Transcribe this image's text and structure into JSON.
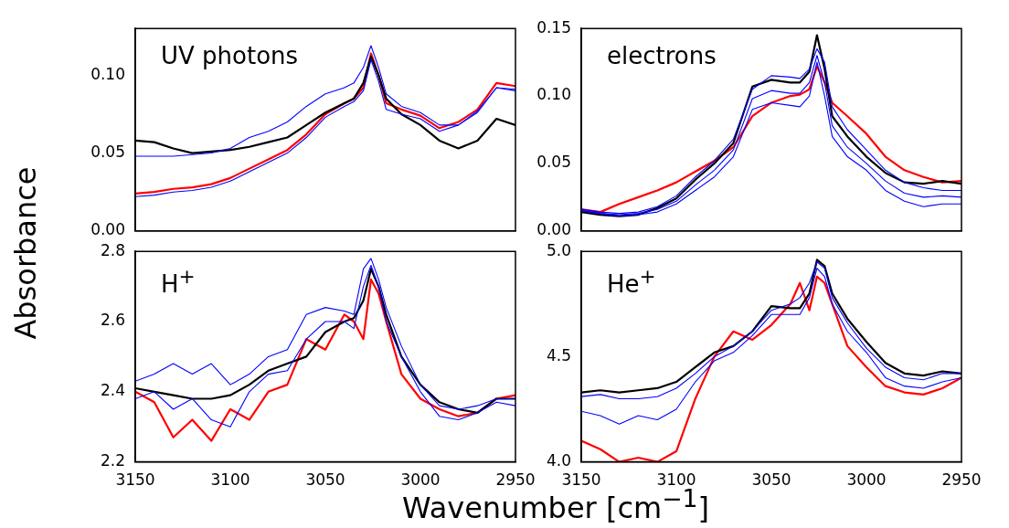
{
  "chart_data": [
    {
      "type": "line",
      "title": "UV photons",
      "ylabel": "Absorbance",
      "marker": "none",
      "tick_labels": "y",
      "xlim": [
        3150,
        2950
      ],
      "ylim": [
        0,
        0.13
      ],
      "yticks": [
        {
          "value": 0,
          "label": "0.00"
        },
        {
          "value": 0.05,
          "label": "0.05"
        },
        {
          "value": 0.1,
          "label": "0.10"
        }
      ],
      "x": [
        3150,
        3140,
        3130,
        3120,
        3110,
        3100,
        3090,
        3080,
        3070,
        3060,
        3050,
        3040,
        3035,
        3030,
        3026,
        3022,
        3018,
        3010,
        3000,
        2990,
        2980,
        2970,
        2960,
        2950
      ],
      "series": [
        {
          "color": "#0000ff",
          "values": [
            0.048,
            0.048,
            0.048,
            0.049,
            0.05,
            0.053,
            0.06,
            0.064,
            0.07,
            0.08,
            0.088,
            0.092,
            0.095,
            0.105,
            0.119,
            0.105,
            0.088,
            0.08,
            0.076,
            0.068,
            0.068,
            0.077,
            0.092,
            0.09
          ]
        },
        {
          "color": "#0000ff",
          "values": [
            0.022,
            0.023,
            0.025,
            0.026,
            0.028,
            0.032,
            0.038,
            0.044,
            0.05,
            0.06,
            0.073,
            0.08,
            0.083,
            0.09,
            0.11,
            0.096,
            0.078,
            0.075,
            0.072,
            0.064,
            0.068,
            0.076,
            0.092,
            0.091
          ]
        },
        {
          "color": "#000000",
          "values": [
            0.058,
            0.057,
            0.053,
            0.05,
            0.051,
            0.052,
            0.054,
            0.057,
            0.06,
            0.068,
            0.076,
            0.082,
            0.085,
            0.095,
            0.112,
            0.1,
            0.085,
            0.075,
            0.068,
            0.058,
            0.053,
            0.058,
            0.072,
            0.068
          ]
        },
        {
          "color": "#ff0000",
          "values": [
            0.024,
            0.025,
            0.027,
            0.028,
            0.03,
            0.034,
            0.04,
            0.046,
            0.052,
            0.062,
            0.075,
            0.082,
            0.085,
            0.092,
            0.114,
            0.1,
            0.082,
            0.078,
            0.074,
            0.066,
            0.07,
            0.078,
            0.095,
            0.093
          ]
        }
      ]
    },
    {
      "type": "line",
      "title": "electrons",
      "marker": "none",
      "tick_labels": "y",
      "xlim": [
        3150,
        2950
      ],
      "ylim": [
        0,
        0.15
      ],
      "yticks": [
        {
          "value": 0,
          "label": "0.00"
        },
        {
          "value": 0.05,
          "label": "0.05"
        },
        {
          "value": 0.1,
          "label": "0.10"
        },
        {
          "value": 0.15,
          "label": "0.15"
        }
      ],
      "x": [
        3150,
        3140,
        3130,
        3120,
        3110,
        3100,
        3090,
        3080,
        3070,
        3060,
        3050,
        3040,
        3035,
        3030,
        3026,
        3022,
        3018,
        3010,
        3000,
        2990,
        2980,
        2970,
        2960,
        2950
      ],
      "series": [
        {
          "color": "#0000ff",
          "values": [
            0.016,
            0.014,
            0.013,
            0.014,
            0.018,
            0.026,
            0.04,
            0.052,
            0.068,
            0.105,
            0.115,
            0.114,
            0.113,
            0.12,
            0.135,
            0.125,
            0.092,
            0.075,
            0.06,
            0.045,
            0.036,
            0.032,
            0.03,
            0.03
          ]
        },
        {
          "color": "#0000ff",
          "values": [
            0.015,
            0.013,
            0.012,
            0.013,
            0.016,
            0.022,
            0.034,
            0.045,
            0.06,
            0.098,
            0.104,
            0.102,
            0.102,
            0.11,
            0.13,
            0.11,
            0.078,
            0.062,
            0.05,
            0.037,
            0.028,
            0.025,
            0.026,
            0.025
          ]
        },
        {
          "color": "#0000ff",
          "values": [
            0.015,
            0.013,
            0.011,
            0.012,
            0.014,
            0.02,
            0.03,
            0.04,
            0.055,
            0.09,
            0.095,
            0.093,
            0.092,
            0.1,
            0.125,
            0.1,
            0.07,
            0.055,
            0.045,
            0.03,
            0.022,
            0.018,
            0.02,
            0.02
          ]
        },
        {
          "color": "#000000",
          "values": [
            0.014,
            0.012,
            0.011,
            0.012,
            0.017,
            0.024,
            0.038,
            0.05,
            0.065,
            0.107,
            0.112,
            0.11,
            0.11,
            0.118,
            0.145,
            0.12,
            0.085,
            0.07,
            0.055,
            0.043,
            0.036,
            0.035,
            0.037,
            0.035
          ]
        },
        {
          "color": "#ff0000",
          "values": [
            0.016,
            0.014,
            0.02,
            0.025,
            0.03,
            0.036,
            0.044,
            0.052,
            0.062,
            0.085,
            0.095,
            0.1,
            0.101,
            0.105,
            0.122,
            0.11,
            0.095,
            0.085,
            0.072,
            0.055,
            0.045,
            0.04,
            0.036,
            0.037
          ]
        }
      ]
    },
    {
      "type": "line",
      "title": "H$^{+}$",
      "xlabel": "Wavenumber [cm$^{−1}$]",
      "marker": "none",
      "xlim": [
        3150,
        2950
      ],
      "xticks": [
        3150,
        3100,
        3050,
        3000,
        2950
      ],
      "ylim": [
        2.2,
        2.8
      ],
      "yticks": [
        {
          "value": 2.2,
          "label": "2.2"
        },
        {
          "value": 2.4,
          "label": "2.4"
        },
        {
          "value": 2.6,
          "label": "2.6"
        },
        {
          "value": 2.8,
          "label": "2.8"
        }
      ],
      "x": [
        3150,
        3140,
        3130,
        3120,
        3110,
        3100,
        3090,
        3080,
        3070,
        3060,
        3050,
        3040,
        3035,
        3030,
        3026,
        3022,
        3018,
        3010,
        3000,
        2990,
        2980,
        2970,
        2960,
        2950
      ],
      "series": [
        {
          "color": "#0000ff",
          "values": [
            2.43,
            2.45,
            2.48,
            2.45,
            2.48,
            2.42,
            2.45,
            2.5,
            2.52,
            2.62,
            2.64,
            2.63,
            2.62,
            2.75,
            2.78,
            2.72,
            2.64,
            2.53,
            2.42,
            2.36,
            2.35,
            2.36,
            2.38,
            2.38
          ]
        },
        {
          "color": "#0000ff",
          "values": [
            2.38,
            2.4,
            2.35,
            2.38,
            2.32,
            2.3,
            2.4,
            2.45,
            2.46,
            2.55,
            2.6,
            2.6,
            2.58,
            2.7,
            2.76,
            2.7,
            2.6,
            2.5,
            2.4,
            2.33,
            2.32,
            2.34,
            2.37,
            2.36
          ]
        },
        {
          "color": "#000000",
          "values": [
            2.41,
            2.4,
            2.39,
            2.38,
            2.38,
            2.39,
            2.42,
            2.46,
            2.48,
            2.5,
            2.57,
            2.6,
            2.61,
            2.66,
            2.75,
            2.7,
            2.62,
            2.5,
            2.42,
            2.37,
            2.35,
            2.34,
            2.38,
            2.38
          ]
        },
        {
          "color": "#ff0000",
          "values": [
            2.4,
            2.37,
            2.27,
            2.32,
            2.26,
            2.35,
            2.32,
            2.4,
            2.42,
            2.55,
            2.52,
            2.62,
            2.6,
            2.55,
            2.72,
            2.68,
            2.6,
            2.45,
            2.38,
            2.35,
            2.33,
            2.34,
            2.38,
            2.39
          ]
        }
      ]
    },
    {
      "type": "line",
      "title": "He$^{+}$",
      "marker": "none",
      "xlim": [
        3150,
        2950
      ],
      "xticks": [
        3150,
        3100,
        3050,
        3000,
        2950
      ],
      "ylim": [
        4,
        5
      ],
      "yticks": [
        {
          "value": 4,
          "label": "4.0"
        },
        {
          "value": 4.5,
          "label": "4.5"
        },
        {
          "value": 5,
          "label": "5.0"
        }
      ],
      "x": [
        3150,
        3140,
        3130,
        3120,
        3110,
        3100,
        3090,
        3080,
        3070,
        3060,
        3050,
        3040,
        3035,
        3030,
        3026,
        3022,
        3018,
        3010,
        3000,
        2990,
        2980,
        2970,
        2960,
        2950
      ],
      "series": [
        {
          "color": "#0000ff",
          "values": [
            4.31,
            4.32,
            4.3,
            4.3,
            4.31,
            4.35,
            4.42,
            4.5,
            4.55,
            4.62,
            4.72,
            4.75,
            4.78,
            4.85,
            4.95,
            4.92,
            4.78,
            4.66,
            4.54,
            4.45,
            4.4,
            4.39,
            4.42,
            4.42
          ]
        },
        {
          "color": "#0000ff",
          "values": [
            4.24,
            4.22,
            4.18,
            4.22,
            4.2,
            4.25,
            4.38,
            4.48,
            4.52,
            4.6,
            4.7,
            4.7,
            4.7,
            4.78,
            4.92,
            4.88,
            4.75,
            4.62,
            4.52,
            4.4,
            4.36,
            4.35,
            4.38,
            4.4
          ]
        },
        {
          "color": "#000000",
          "values": [
            4.33,
            4.34,
            4.33,
            4.34,
            4.35,
            4.38,
            4.45,
            4.52,
            4.55,
            4.62,
            4.74,
            4.73,
            4.73,
            4.8,
            4.96,
            4.93,
            4.8,
            4.68,
            4.57,
            4.47,
            4.42,
            4.41,
            4.43,
            4.42
          ]
        },
        {
          "color": "#ff0000",
          "values": [
            4.1,
            4.06,
            4.0,
            4.02,
            4.0,
            4.05,
            4.3,
            4.5,
            4.62,
            4.58,
            4.65,
            4.75,
            4.85,
            4.72,
            4.88,
            4.85,
            4.75,
            4.55,
            4.45,
            4.36,
            4.33,
            4.32,
            4.35,
            4.4
          ]
        }
      ]
    }
  ]
}
